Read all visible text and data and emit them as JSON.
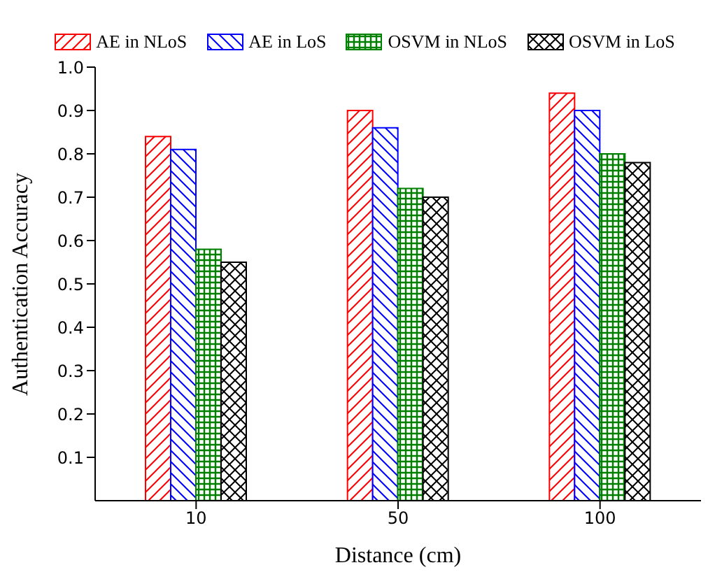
{
  "chart_data": {
    "type": "bar",
    "xlabel": "Distance (cm)",
    "ylabel": "Authentication Accuracy",
    "categories": [
      "10",
      "50",
      "100"
    ],
    "series": [
      {
        "name": "AE in NLoS",
        "color": "#ff0000",
        "values": [
          0.84,
          0.9,
          0.94
        ]
      },
      {
        "name": "AE in LoS",
        "color": "#0000ff",
        "values": [
          0.81,
          0.86,
          0.9
        ]
      },
      {
        "name": "OSVM in NLoS",
        "color": "#008000",
        "values": [
          0.58,
          0.72,
          0.8
        ]
      },
      {
        "name": "OSVM in LoS",
        "color": "#000000",
        "values": [
          0.55,
          0.7,
          0.78
        ]
      }
    ],
    "ylim": [
      0,
      1
    ],
    "yticks": [
      0.1,
      0.2,
      0.3,
      0.4,
      0.5,
      0.6,
      0.7,
      0.8,
      0.9,
      {
        "value": 1,
        "label": "1.0"
      }
    ],
    "grid": false,
    "legend": "top"
  }
}
